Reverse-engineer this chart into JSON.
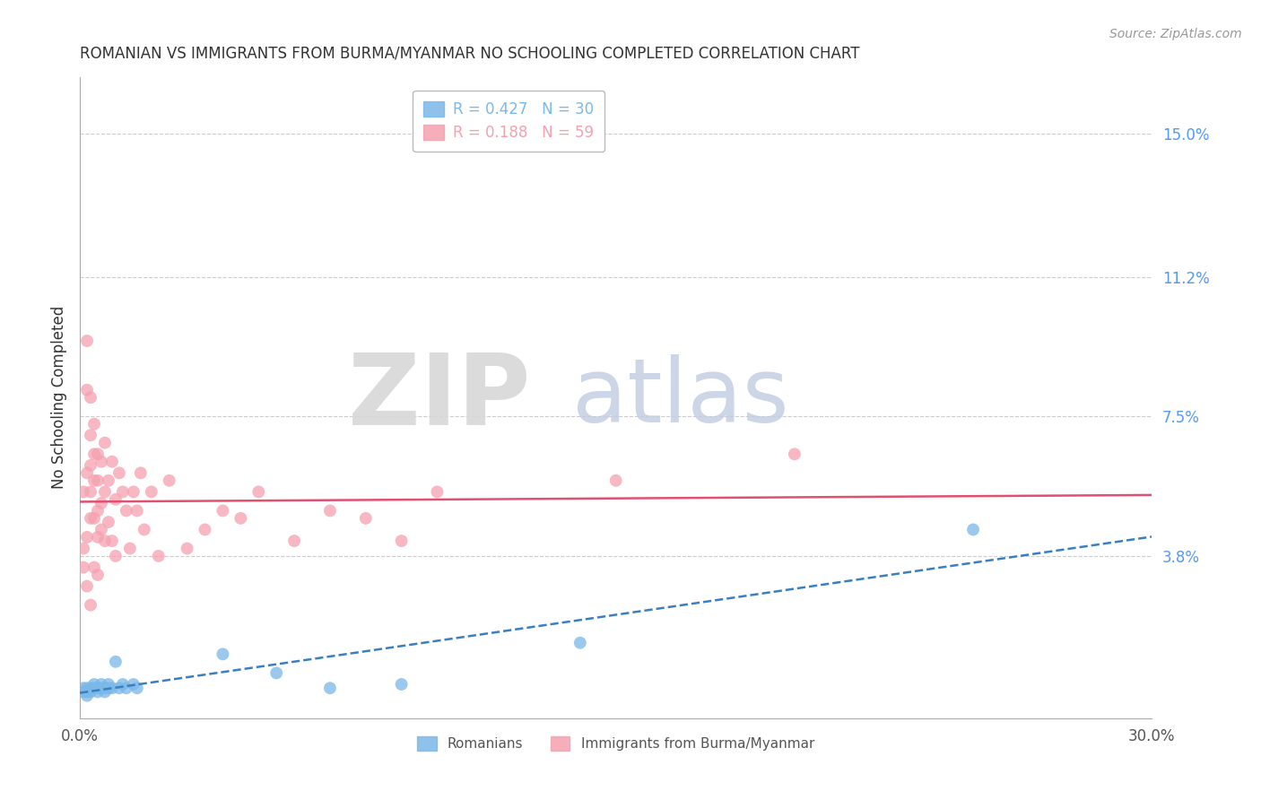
{
  "title": "ROMANIAN VS IMMIGRANTS FROM BURMA/MYANMAR NO SCHOOLING COMPLETED CORRELATION CHART",
  "source": "Source: ZipAtlas.com",
  "ylabel": "No Schooling Completed",
  "right_yticks": [
    0.038,
    0.075,
    0.112,
    0.15
  ],
  "right_ytick_labels": [
    "3.8%",
    "7.5%",
    "11.2%",
    "15.0%"
  ],
  "legend_r_n_1": "R = 0.427   N = 30",
  "legend_r_n_2": "R = 0.188   N = 59",
  "legend_color_1": "#7ab8e8",
  "legend_color_2": "#f5a0b0",
  "legend_labels_bottom": [
    "Romanians",
    "Immigrants from Burma/Myanmar"
  ],
  "series1_color": "#7ab8e8",
  "series2_color": "#f5a0b0",
  "trendline1_color": "#3a7fc1",
  "trendline2_color": "#e05070",
  "trendline1_dash": true,
  "xlim": [
    0.0,
    0.3
  ],
  "ylim": [
    -0.005,
    0.165
  ],
  "romanians_x": [
    0.001,
    0.001,
    0.002,
    0.002,
    0.002,
    0.003,
    0.003,
    0.004,
    0.004,
    0.005,
    0.005,
    0.006,
    0.006,
    0.007,
    0.007,
    0.008,
    0.008,
    0.009,
    0.01,
    0.011,
    0.012,
    0.013,
    0.015,
    0.016,
    0.04,
    0.055,
    0.07,
    0.09,
    0.14,
    0.25
  ],
  "romanians_y": [
    0.002,
    0.003,
    0.001,
    0.003,
    0.002,
    0.003,
    0.002,
    0.003,
    0.004,
    0.002,
    0.003,
    0.003,
    0.004,
    0.002,
    0.003,
    0.003,
    0.004,
    0.003,
    0.01,
    0.003,
    0.004,
    0.003,
    0.004,
    0.003,
    0.012,
    0.007,
    0.003,
    0.004,
    0.015,
    0.045
  ],
  "burma_x": [
    0.001,
    0.001,
    0.001,
    0.002,
    0.002,
    0.002,
    0.002,
    0.002,
    0.003,
    0.003,
    0.003,
    0.003,
    0.003,
    0.003,
    0.004,
    0.004,
    0.004,
    0.004,
    0.004,
    0.005,
    0.005,
    0.005,
    0.005,
    0.005,
    0.006,
    0.006,
    0.006,
    0.007,
    0.007,
    0.007,
    0.008,
    0.008,
    0.009,
    0.009,
    0.01,
    0.01,
    0.011,
    0.012,
    0.013,
    0.014,
    0.015,
    0.016,
    0.017,
    0.018,
    0.02,
    0.022,
    0.025,
    0.03,
    0.035,
    0.04,
    0.045,
    0.05,
    0.06,
    0.07,
    0.08,
    0.09,
    0.1,
    0.15,
    0.2
  ],
  "burma_y": [
    0.04,
    0.055,
    0.035,
    0.06,
    0.03,
    0.095,
    0.082,
    0.043,
    0.025,
    0.07,
    0.048,
    0.08,
    0.062,
    0.055,
    0.035,
    0.058,
    0.048,
    0.065,
    0.073,
    0.05,
    0.033,
    0.065,
    0.058,
    0.043,
    0.045,
    0.052,
    0.063,
    0.042,
    0.068,
    0.055,
    0.058,
    0.047,
    0.042,
    0.063,
    0.053,
    0.038,
    0.06,
    0.055,
    0.05,
    0.04,
    0.055,
    0.05,
    0.06,
    0.045,
    0.055,
    0.038,
    0.058,
    0.04,
    0.045,
    0.05,
    0.048,
    0.055,
    0.042,
    0.05,
    0.048,
    0.042,
    0.055,
    0.058,
    0.065
  ]
}
